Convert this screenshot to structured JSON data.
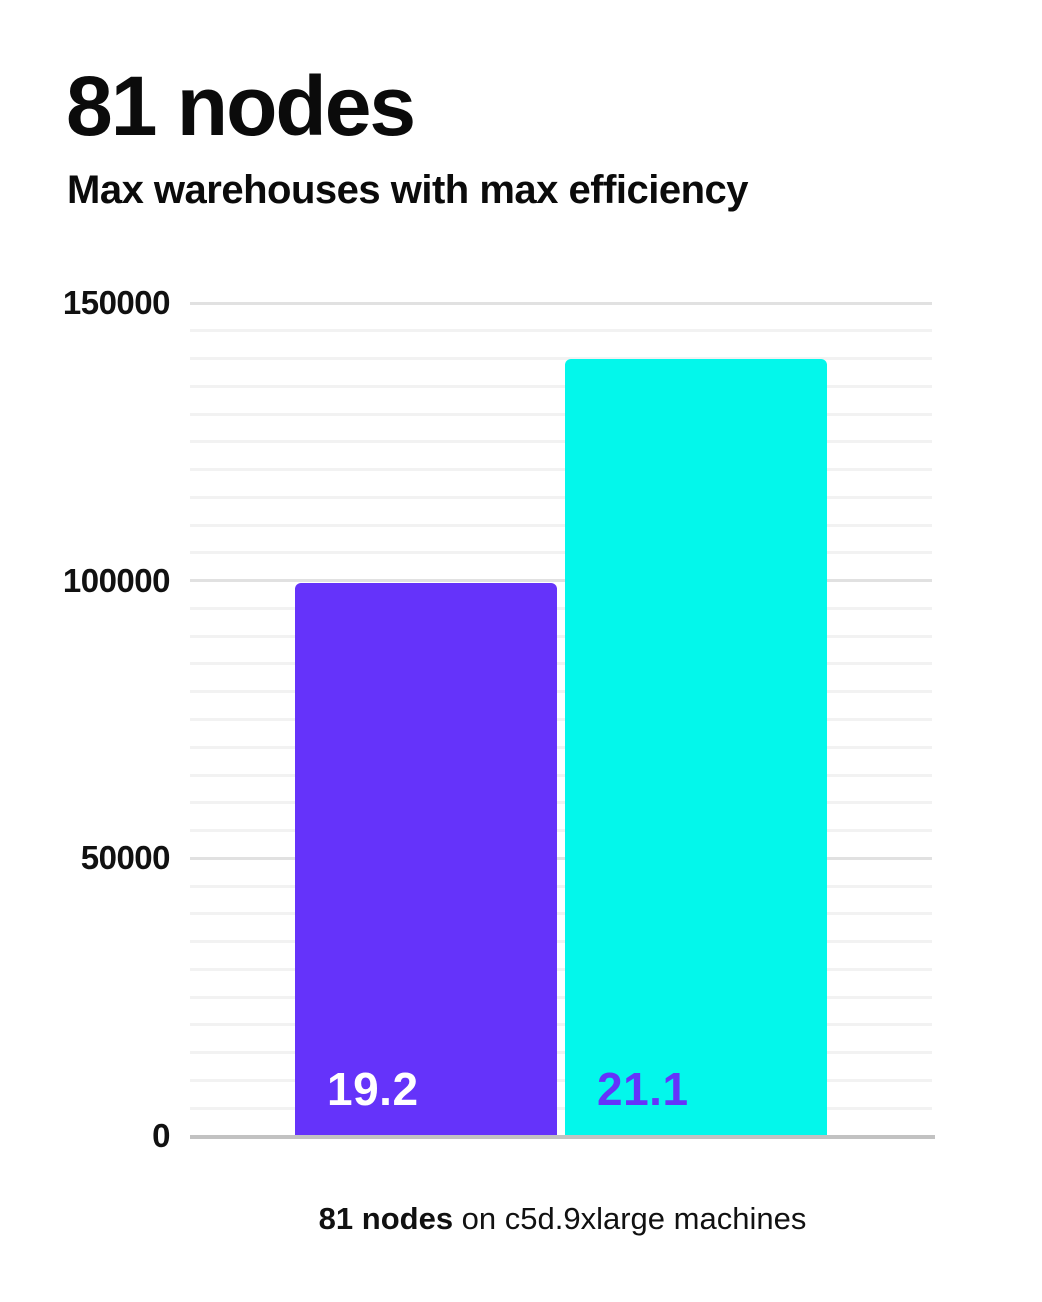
{
  "card": {
    "title": "81 nodes",
    "subtitle": "Max warehouses with max efficiency",
    "caption": {
      "bold": "81 nodes",
      "rest": " on c5d.9xlarge machines"
    }
  },
  "colors": {
    "card_bg": "#FFFFFF",
    "text": "#0B0B0B",
    "bar1": "#6533FA",
    "bar2": "#03F7EB",
    "bar1_label": "#FFFFFF",
    "bar2_label": "#6533FA",
    "grid_minor": "#F2F2F2",
    "grid_major": "#E1E1E1",
    "axis": "#C2C2C2"
  },
  "chart_data": {
    "type": "bar",
    "title": "81 nodes",
    "subtitle": "Max warehouses with max efficiency",
    "categories": [
      "19.2",
      "21.1"
    ],
    "series": [
      {
        "name": "max warehouses",
        "values": [
          99500,
          140000
        ]
      }
    ],
    "bars": [
      {
        "label": "19.2",
        "value": 99500
      },
      {
        "label": "21.1",
        "value": 140000
      }
    ],
    "xlabel": "",
    "ylabel": "",
    "ylim": [
      0,
      150000
    ],
    "y_ticks": [
      0,
      50000,
      100000,
      150000
    ],
    "y_tick_labels": [
      "0",
      "50000",
      "100000",
      "150000"
    ],
    "minor_gridline_step": 5000,
    "major_gridline_step": 50000,
    "grid": true,
    "legend": "none",
    "caption": "81 nodes on c5d.9xlarge machines"
  }
}
